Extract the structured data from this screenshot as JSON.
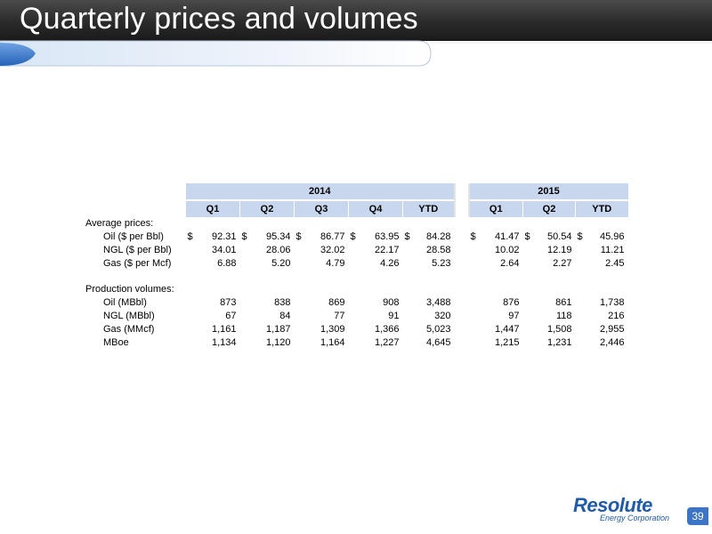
{
  "title": "Quarterly prices and volumes",
  "table": {
    "years": [
      "2014",
      "2015"
    ],
    "quarters_2014": [
      "Q1",
      "Q2",
      "Q3",
      "Q4",
      "YTD"
    ],
    "quarters_2015": [
      "Q1",
      "Q2",
      "YTD"
    ],
    "sections": [
      {
        "heading": "Average prices:",
        "rows": [
          {
            "label": "Oil ($ per Bbl)",
            "dollar": true,
            "v2014": [
              "92.31",
              "95.34",
              "86.77",
              "63.95",
              "84.28"
            ],
            "v2015": [
              "41.47",
              "50.54",
              "45.96"
            ]
          },
          {
            "label": "NGL ($ per Bbl)",
            "dollar": false,
            "v2014": [
              "34.01",
              "28.06",
              "32.02",
              "22.17",
              "28.58"
            ],
            "v2015": [
              "10.02",
              "12.19",
              "11.21"
            ]
          },
          {
            "label": "Gas ($ per Mcf)",
            "dollar": false,
            "v2014": [
              "6.88",
              "5.20",
              "4.79",
              "4.26",
              "5.23"
            ],
            "v2015": [
              "2.64",
              "2.27",
              "2.45"
            ]
          }
        ]
      },
      {
        "heading": "Production volumes:",
        "rows": [
          {
            "label": "Oil (MBbl)",
            "dollar": false,
            "v2014": [
              "873",
              "838",
              "869",
              "908",
              "3,488"
            ],
            "v2015": [
              "876",
              "861",
              "1,738"
            ]
          },
          {
            "label": "NGL (MBbl)",
            "dollar": false,
            "v2014": [
              "67",
              "84",
              "77",
              "91",
              "320"
            ],
            "v2015": [
              "97",
              "118",
              "216"
            ]
          },
          {
            "label": "Gas (MMcf)",
            "dollar": false,
            "v2014": [
              "1,161",
              "1,187",
              "1,309",
              "1,366",
              "5,023"
            ],
            "v2015": [
              "1,447",
              "1,508",
              "2,955"
            ]
          },
          {
            "label": "MBoe",
            "dollar": false,
            "v2014": [
              "1,134",
              "1,120",
              "1,164",
              "1,227",
              "4,645"
            ],
            "v2015": [
              "1,215",
              "1,231",
              "2,446"
            ]
          }
        ]
      }
    ],
    "currency_symbol": "$"
  },
  "logo": {
    "name": "Resolute",
    "subtitle": "Energy Corporation"
  },
  "page_number": "39",
  "colors": {
    "header_fill": "#c9d7ee",
    "accent_blue": "#3d74c4",
    "logo_blue": "#1f5ba8"
  }
}
